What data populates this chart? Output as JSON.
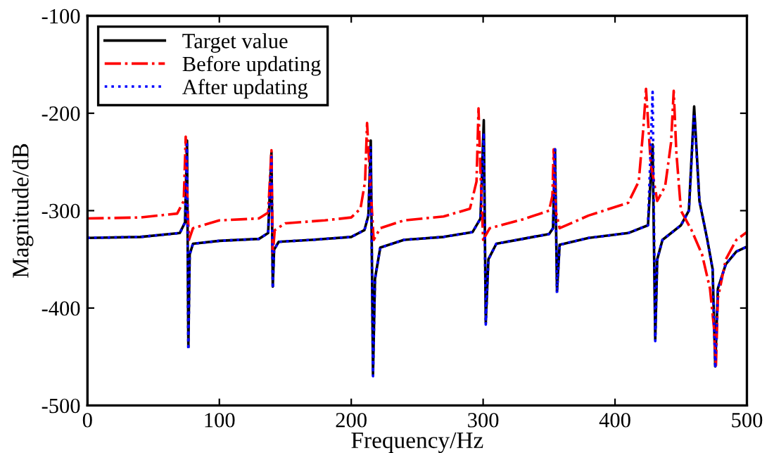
{
  "chart_data": {
    "type": "line",
    "xlabel": "Frequency/Hz",
    "ylabel": "Magnitude/dB",
    "xlim": [
      0,
      500
    ],
    "ylim": [
      -500,
      -100
    ],
    "xticks": [
      0,
      100,
      200,
      300,
      400,
      500
    ],
    "yticks": [
      -500,
      -400,
      -300,
      -200,
      -100
    ],
    "grid": false,
    "legend": "top left",
    "series": [
      {
        "name": "Target value",
        "color": "#000000",
        "line_style": "solid",
        "x": [
          0,
          40,
          70,
          74,
          75.5,
          76.5,
          77.5,
          80,
          100,
          130,
          137,
          139.5,
          140.5,
          141.5,
          145,
          170,
          200,
          210,
          213,
          214.8,
          216.5,
          218,
          222,
          240,
          270,
          292,
          298,
          300.5,
          302,
          304,
          310,
          330,
          350,
          353,
          354.5,
          356,
          358,
          380,
          410,
          425,
          428.5,
          430.5,
          432,
          436,
          450,
          456,
          460,
          464,
          470,
          474,
          476,
          478,
          484,
          492,
          500
        ],
        "values": [
          -328,
          -327,
          -323,
          -312,
          -228,
          -440,
          -345,
          -334,
          -331,
          -329,
          -323,
          -240,
          -378,
          -340,
          -332,
          -330,
          -327,
          -320,
          -305,
          -228,
          -468,
          -370,
          -338,
          -330,
          -327,
          -322,
          -308,
          -207,
          -415,
          -350,
          -334,
          -329,
          -324,
          -318,
          -237,
          -383,
          -335,
          -328,
          -323,
          -315,
          -232,
          -432,
          -350,
          -330,
          -315,
          -300,
          -193,
          -290,
          -330,
          -360,
          -460,
          -380,
          -355,
          -342,
          -337
        ]
      },
      {
        "name": "Before updating",
        "color": "#ff0000",
        "line_style": "dashdot",
        "x": [
          0,
          40,
          68,
          73,
          74.5,
          76,
          77,
          80,
          100,
          130,
          137,
          139.5,
          140.5,
          142,
          150,
          180,
          200,
          207,
          210.5,
          212,
          214,
          217,
          222,
          240,
          270,
          290,
          295,
          296.5,
          298,
          300,
          305,
          330,
          350,
          352.5,
          353.5,
          355,
          358,
          380,
          410,
          418,
          421.5,
          423.5,
          427,
          432,
          438,
          442.5,
          444.5,
          446.5,
          450,
          458,
          466,
          472,
          475,
          476.5,
          478,
          484,
          492,
          500
        ],
        "values": [
          -308,
          -307,
          -303,
          -290,
          -224,
          -300,
          -330,
          -318,
          -310,
          -308,
          -302,
          -238,
          -345,
          -320,
          -313,
          -310,
          -307,
          -298,
          -270,
          -210,
          -260,
          -330,
          -318,
          -310,
          -306,
          -298,
          -270,
          -195,
          -260,
          -330,
          -318,
          -309,
          -300,
          -285,
          -237,
          -300,
          -318,
          -305,
          -292,
          -270,
          -215,
          -175,
          -250,
          -290,
          -275,
          -230,
          -177,
          -240,
          -300,
          -320,
          -345,
          -380,
          -420,
          -460,
          -390,
          -350,
          -330,
          -322
        ]
      },
      {
        "name": "After updating",
        "color": "#0000ff",
        "line_style": "dotted",
        "x": [
          0,
          40,
          70,
          74,
          75.5,
          76.5,
          77.5,
          80,
          100,
          130,
          137,
          139.5,
          140.5,
          141.5,
          145,
          170,
          200,
          210,
          213,
          214.8,
          216.5,
          218,
          222,
          240,
          270,
          292,
          298,
          300.5,
          302,
          304,
          310,
          330,
          350,
          353,
          354.5,
          356,
          358,
          380,
          410,
          425,
          428.5,
          430.5,
          432,
          436,
          450,
          456,
          460,
          464,
          470,
          474,
          476,
          478,
          484,
          492,
          500
        ],
        "values": [
          -328,
          -327,
          -323,
          -312,
          -232,
          -443,
          -345,
          -334,
          -331,
          -329,
          -323,
          -245,
          -380,
          -340,
          -332,
          -330,
          -327,
          -320,
          -305,
          -235,
          -470,
          -370,
          -338,
          -330,
          -327,
          -322,
          -308,
          -220,
          -417,
          -350,
          -334,
          -329,
          -324,
          -318,
          -237,
          -385,
          -335,
          -328,
          -323,
          -315,
          -178,
          -434,
          -350,
          -330,
          -315,
          -300,
          -200,
          -290,
          -330,
          -360,
          -462,
          -380,
          -355,
          -342,
          -337
        ]
      }
    ]
  }
}
